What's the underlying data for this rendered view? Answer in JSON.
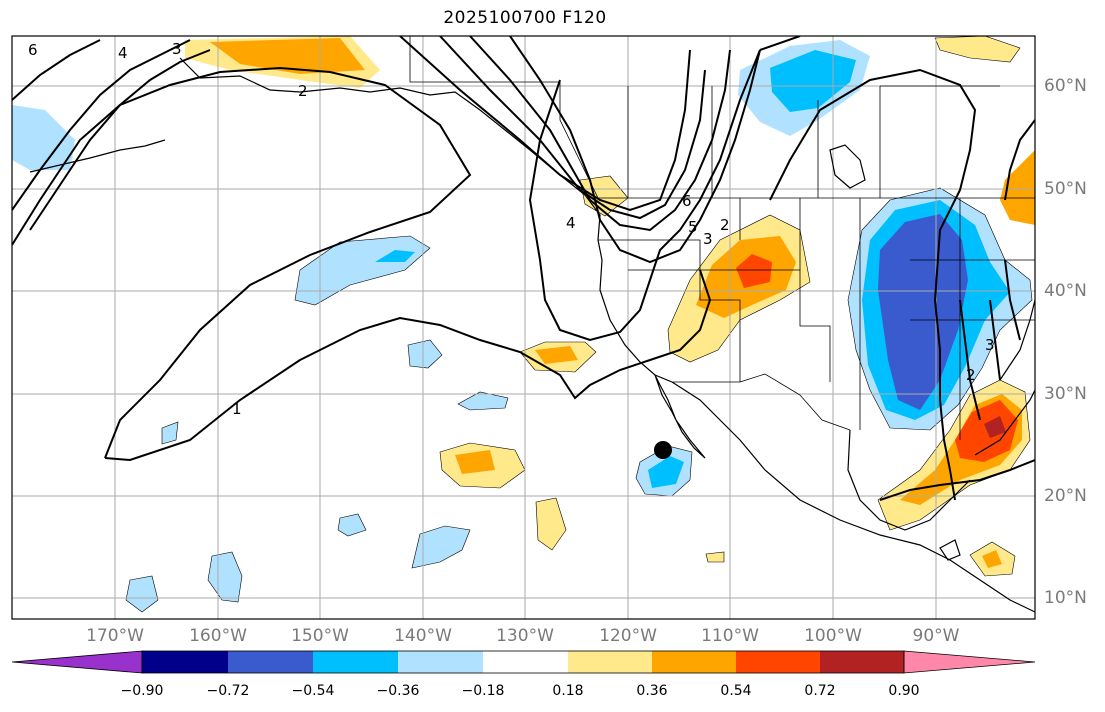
{
  "title": "2025100700 F120",
  "map": {
    "projection": "cylindrical",
    "lon_range": [
      -178,
      -79
    ],
    "lat_range": [
      8,
      66
    ],
    "lat_labels": [
      "60°N",
      "50°N",
      "40°N",
      "30°N",
      "20°N",
      "10°N"
    ],
    "lat_values": [
      60,
      50,
      40,
      30,
      20,
      10
    ],
    "lon_labels": [
      "170°W",
      "160°W",
      "150°W",
      "140°W",
      "130°W",
      "120°W",
      "110°W",
      "100°W",
      "90°W"
    ],
    "lon_values": [
      -170,
      -160,
      -150,
      -140,
      -130,
      -120,
      -110,
      -100,
      -90
    ],
    "contour_labels": [
      "6",
      "4",
      "3",
      "2",
      "1",
      "6",
      "5",
      "4",
      "3",
      "2",
      "3",
      "2"
    ],
    "marker": {
      "type": "point",
      "lon": -116.5,
      "lat": 24.5
    }
  },
  "colorbar": {
    "ticks": [
      "−0.90",
      "−0.72",
      "−0.54",
      "−0.36",
      "−0.18",
      "0.18",
      "0.36",
      "0.54",
      "0.72",
      "0.90"
    ],
    "colors": [
      "#9932cc",
      "#00008b",
      "#3a5bcd",
      "#00bfff",
      "#b0e2ff",
      "#ffffff",
      "#ffe98a",
      "#ffa500",
      "#ff4500",
      "#b22222",
      "#ff88aa"
    ]
  },
  "colors": {
    "grid": "#aaaaaa",
    "contour": "#000000",
    "coast": "#000000",
    "label": "#7a7a7a"
  }
}
